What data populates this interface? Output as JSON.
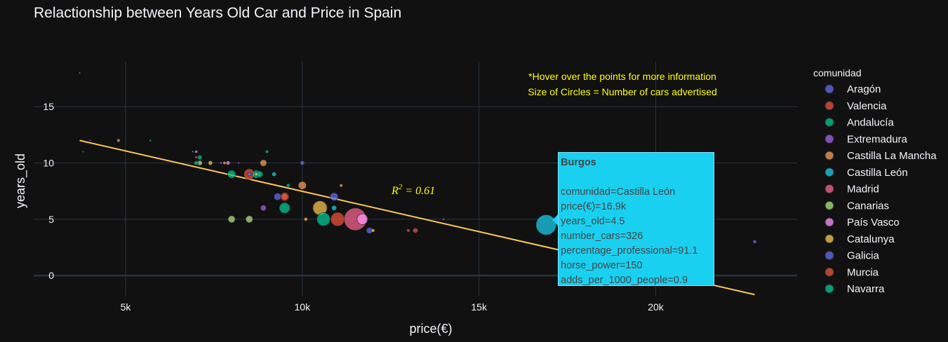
{
  "chart_data": {
    "type": "scatter",
    "title": "Relactionship between Years Old Car and Price in Spain",
    "xlabel": "price(€)",
    "ylabel": "years_old",
    "xlim": [
      2400,
      24000
    ],
    "ylim": [
      -1.8,
      19.0
    ],
    "xticks": [
      5000,
      10000,
      15000,
      20000
    ],
    "xtick_labels": [
      "5k",
      "10k",
      "15k",
      "20k"
    ],
    "yticks": [
      0,
      5,
      10,
      15
    ],
    "ytick_labels": [
      "0",
      "5",
      "10",
      "15"
    ],
    "grid": true,
    "legend_title": "comunidad",
    "legend_position": "right",
    "series": [
      {
        "name": "Aragón",
        "color": "#636efa",
        "points": [
          [
            4000,
            12,
            2
          ],
          [
            8500,
            9,
            10
          ],
          [
            9300,
            7,
            40
          ],
          [
            10000,
            10,
            15
          ],
          [
            10900,
            7,
            50
          ],
          [
            11900,
            4,
            30
          ]
        ]
      },
      {
        "name": "Valencia",
        "color": "#ef553b",
        "points": [
          [
            7000,
            10.5,
            5
          ],
          [
            8500,
            9,
            90
          ],
          [
            9500,
            7,
            60
          ],
          [
            11000,
            5,
            150
          ],
          [
            13200,
            4,
            20
          ]
        ]
      },
      {
        "name": "Andalucía",
        "color": "#00cc96",
        "points": [
          [
            8000,
            9,
            50
          ],
          [
            8800,
            9,
            30
          ],
          [
            9500,
            6,
            90
          ],
          [
            10600,
            5,
            140
          ],
          [
            9600,
            8,
            10
          ]
        ]
      },
      {
        "name": "Extremadura",
        "color": "#ab63fa",
        "points": [
          [
            7700,
            10,
            4
          ],
          [
            8200,
            10,
            3
          ],
          [
            8900,
            6,
            25
          ]
        ]
      },
      {
        "name": "Castilla La Mancha",
        "color": "#ffa15a",
        "points": [
          [
            4800,
            12,
            8
          ],
          [
            7800,
            10,
            8
          ],
          [
            8900,
            10,
            35
          ],
          [
            10000,
            8,
            50
          ],
          [
            11100,
            8,
            8
          ]
        ]
      },
      {
        "name": "Castilla León",
        "color": "#19d3f3",
        "points": [
          [
            16900,
            4.5,
            326
          ],
          [
            5700,
            12,
            3
          ],
          [
            6900,
            11,
            2
          ],
          [
            9200,
            9,
            15
          ],
          [
            10900,
            6,
            20
          ],
          [
            14000,
            5,
            3
          ]
        ]
      },
      {
        "name": "Madrid",
        "color": "#ff6692",
        "points": [
          [
            11500,
            5,
            400
          ],
          [
            3700,
            18,
            1
          ]
        ]
      },
      {
        "name": "Canarias",
        "color": "#b6e880",
        "points": [
          [
            8000,
            5,
            40
          ],
          [
            8500,
            5,
            40
          ],
          [
            8700,
            9,
            10
          ],
          [
            7100,
            10,
            20
          ]
        ]
      },
      {
        "name": "País Vasco",
        "color": "#ff97ff",
        "points": [
          [
            7000,
            11,
            6
          ],
          [
            7900,
            10,
            12
          ],
          [
            11700,
            5,
            90
          ]
        ]
      },
      {
        "name": "Catalunya",
        "color": "#fecb52",
        "points": [
          [
            7400,
            10,
            15
          ],
          [
            10500,
            6,
            160
          ],
          [
            10100,
            5,
            10
          ],
          [
            12000,
            4,
            10
          ]
        ]
      },
      {
        "name": "Galicia",
        "color": "#636efa",
        "points": [
          [
            22800,
            3,
            10
          ],
          [
            3800,
            11,
            1
          ]
        ]
      },
      {
        "name": "Murcia",
        "color": "#ef553b",
        "points": [
          [
            9500,
            7,
            40
          ],
          [
            13000,
            4,
            8
          ]
        ]
      },
      {
        "name": "Navarra",
        "color": "#00cc96",
        "points": [
          [
            7000,
            10,
            15
          ],
          [
            8700,
            9,
            50
          ],
          [
            9000,
            11,
            8
          ],
          [
            7100,
            10.5,
            15
          ]
        ]
      }
    ],
    "trendline": {
      "x": [
        3700,
        22800
      ],
      "y": [
        12.0,
        -1.7
      ],
      "color": "#ffc857"
    },
    "r_squared_label": "R",
    "r_squared_value": " = 0.61",
    "r_squared_exp": "2",
    "annotations": [
      "*Hover over the points for more information",
      "Size of Circles = Number of cars advertised"
    ],
    "tooltip": {
      "title": "Burgos",
      "lines": [
        "comunidad=Castilla León",
        "price(€)=16.9k",
        "years_old=4.5",
        "number_cars=326",
        "percentage_professional=91.1",
        "horse_power=150",
        "adds_per_1000_people=0.9"
      ]
    }
  }
}
